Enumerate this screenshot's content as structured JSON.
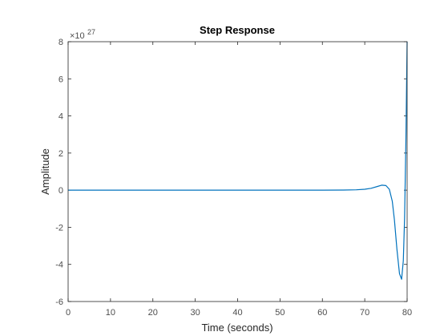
{
  "chart_data": {
    "type": "line",
    "title": "Step Response",
    "xlabel": "Time (seconds)",
    "ylabel": "Amplitude",
    "y_exponent": "27",
    "xlim": [
      0,
      80
    ],
    "ylim": [
      -6,
      8
    ],
    "xticks": [
      0,
      10,
      20,
      30,
      40,
      50,
      60,
      70,
      80
    ],
    "yticks": [
      -6,
      -4,
      -2,
      0,
      2,
      4,
      6,
      8
    ],
    "grid": false,
    "series": [
      {
        "color": "#0072bd",
        "x": [
          0,
          10,
          20,
          30,
          40,
          50,
          60,
          65,
          68,
          70,
          71.5,
          73,
          74,
          75,
          75.8,
          76.5,
          77,
          77.6,
          78.2,
          78.7,
          79.1,
          79.4,
          79.7,
          80
        ],
        "y": [
          0,
          0,
          0,
          0,
          0,
          0,
          0,
          0.005,
          0.02,
          0.05,
          0.1,
          0.2,
          0.27,
          0.25,
          0.05,
          -0.6,
          -1.6,
          -3.2,
          -4.5,
          -4.8,
          -3.8,
          -1.5,
          2.5,
          8
        ]
      }
    ]
  }
}
